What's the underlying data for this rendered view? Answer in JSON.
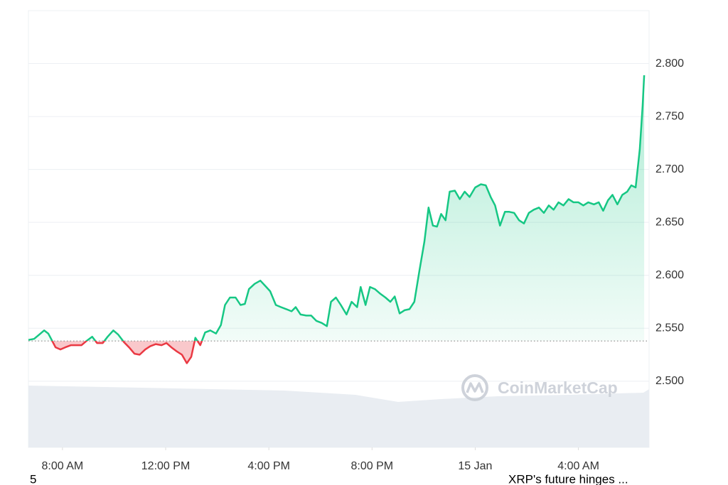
{
  "chart_data": {
    "type": "line",
    "x": [
      6.68,
      6.9,
      7.1,
      7.29,
      7.45,
      7.56,
      7.73,
      7.92,
      8.11,
      8.33,
      8.55,
      8.74,
      8.93,
      9.15,
      9.34,
      9.56,
      9.75,
      9.97,
      10.16,
      10.38,
      10.58,
      10.79,
      10.99,
      11.21,
      11.4,
      11.62,
      11.84,
      12.03,
      12.22,
      12.44,
      12.63,
      12.82,
      12.99,
      13.15,
      13.34,
      13.53,
      13.73,
      13.95,
      14.14,
      14.3,
      14.49,
      14.71,
      14.9,
      15.07,
      15.23,
      15.45,
      15.67,
      15.86,
      16.05,
      16.27,
      16.47,
      16.68,
      16.88,
      17.04,
      17.23,
      17.45,
      17.64,
      17.84,
      18.05,
      18.25,
      18.41,
      18.6,
      18.79,
      19.01,
      19.21,
      19.42,
      19.56,
      19.75,
      19.92,
      20.11,
      20.3,
      20.52,
      20.71,
      20.88,
      21.07,
      21.26,
      21.45,
      21.64,
      21.84,
      22.03,
      22.19,
      22.36,
      22.52,
      22.68,
      22.85,
      23.01,
      23.21,
      23.4,
      23.59,
      23.78,
      24.0,
      24.22,
      24.41,
      24.6,
      24.77,
      24.96,
      25.15,
      25.32,
      25.51,
      25.7,
      25.89,
      26.08,
      26.27,
      26.47,
      26.66,
      26.85,
      27.04,
      27.23,
      27.42,
      27.62,
      27.81,
      28.0,
      28.19,
      28.38,
      28.6,
      28.79,
      28.96,
      29.15,
      29.32,
      29.51,
      29.7,
      29.89,
      30.05,
      30.22,
      30.38,
      30.49,
      30.55
    ],
    "series": [
      {
        "name": "XRP",
        "color": "#16c784",
        "color_below": "#ea3943",
        "values": [
          2.539,
          2.54,
          2.544,
          2.548,
          2.545,
          2.54,
          2.532,
          2.53,
          2.532,
          2.534,
          2.534,
          2.534,
          2.538,
          2.542,
          2.536,
          2.536,
          2.542,
          2.548,
          2.544,
          2.537,
          2.532,
          2.526,
          2.525,
          2.53,
          2.533,
          2.535,
          2.534,
          2.536,
          2.532,
          2.528,
          2.525,
          2.517,
          2.523,
          2.541,
          2.534,
          2.546,
          2.548,
          2.545,
          2.553,
          2.572,
          2.579,
          2.579,
          2.572,
          2.573,
          2.587,
          2.592,
          2.595,
          2.59,
          2.585,
          2.572,
          2.57,
          2.568,
          2.566,
          2.57,
          2.563,
          2.562,
          2.562,
          2.557,
          2.555,
          2.552,
          2.575,
          2.579,
          2.572,
          2.563,
          2.575,
          2.57,
          2.589,
          2.572,
          2.589,
          2.587,
          2.583,
          2.579,
          2.575,
          2.58,
          2.564,
          2.567,
          2.568,
          2.575,
          2.605,
          2.632,
          2.664,
          2.647,
          2.646,
          2.658,
          2.652,
          2.679,
          2.68,
          2.672,
          2.679,
          2.674,
          2.683,
          2.686,
          2.685,
          2.674,
          2.666,
          2.647,
          2.66,
          2.66,
          2.659,
          2.652,
          2.649,
          2.659,
          2.662,
          2.664,
          2.659,
          2.666,
          2.662,
          2.669,
          2.666,
          2.672,
          2.669,
          2.669,
          2.666,
          2.669,
          2.667,
          2.669,
          2.661,
          2.671,
          2.676,
          2.667,
          2.676,
          2.679,
          2.685,
          2.683,
          2.719,
          2.76,
          2.789
        ]
      }
    ],
    "reference": 2.538,
    "xlim": [
      6.68,
      30.74
    ],
    "xticks": [
      {
        "value": 8,
        "label": "8:00 AM"
      },
      {
        "value": 12,
        "label": "12:00 PM"
      },
      {
        "value": 16,
        "label": "4:00 PM"
      },
      {
        "value": 20,
        "label": "8:00 PM"
      },
      {
        "value": 24,
        "label": "15 Jan"
      },
      {
        "value": 28,
        "label": "4:00 AM"
      }
    ],
    "ylim": [
      2.4375,
      2.85
    ],
    "yticks": [
      {
        "value": 2.5,
        "label": "2.500"
      },
      {
        "value": 2.55,
        "label": "2.550"
      },
      {
        "value": 2.6,
        "label": "2.600"
      },
      {
        "value": 2.65,
        "label": "2.650"
      },
      {
        "value": 2.7,
        "label": "2.700"
      },
      {
        "value": 2.75,
        "label": "2.750"
      },
      {
        "value": 2.8,
        "label": "2.800"
      }
    ],
    "grid": true,
    "watermark": "CoinMarketCap"
  },
  "footer": {
    "left": "5",
    "right": "XRP's future hinges ..."
  }
}
